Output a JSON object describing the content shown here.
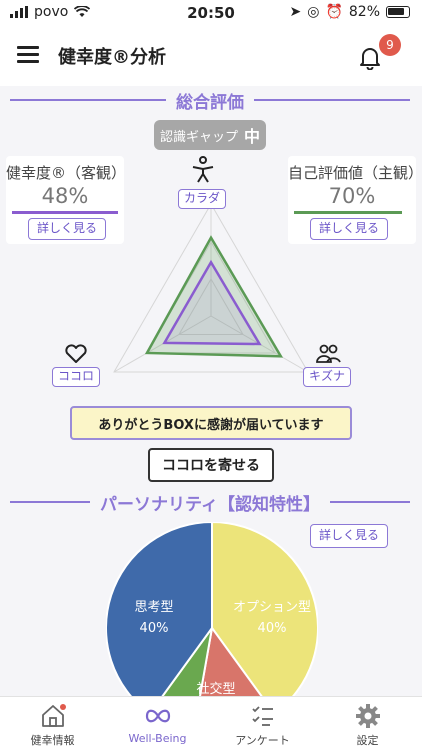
{
  "status_bar": {
    "carrier": "povo",
    "time": "20:50",
    "battery": "82%"
  },
  "app_bar": {
    "title": "健幸度®分析",
    "notification_count": "9"
  },
  "overall": {
    "heading": "総合評価",
    "gap_label": "認識ギャップ",
    "gap_value": "中",
    "objective": {
      "label": "健幸度®（客観）",
      "value": "48%",
      "detail_label": "詳しく見る",
      "color": "#8a5ccf"
    },
    "subjective": {
      "label": "自己評価値（主観）",
      "value": "70%",
      "detail_label": "詳しく見る",
      "color": "#5b9a55"
    },
    "radar": {
      "axes": [
        "カラダ",
        "キズナ",
        "ココロ"
      ],
      "objective_values": [
        0.48,
        0.5,
        0.48
      ],
      "subjective_values": [
        0.7,
        0.72,
        0.66
      ]
    },
    "notice": "ありがとうBOXに感謝が届いています",
    "send_label": "ココロを寄せる"
  },
  "personality": {
    "heading": "パーソナリティ【認知特性】",
    "detail_label": "詳しく見る",
    "slices": [
      {
        "name": "思考型",
        "value": "40%",
        "color": "#3f6aaa"
      },
      {
        "name": "オプション型",
        "value": "40%",
        "color": "#ece47a"
      },
      {
        "name": "社交型",
        "value": "",
        "color": "#d8756a"
      },
      {
        "name": "",
        "value": "",
        "color": "#6aa84f"
      }
    ]
  },
  "tabs": [
    {
      "label": "健幸情報"
    },
    {
      "label": "Well-Being"
    },
    {
      "label": "アンケート"
    },
    {
      "label": "設定"
    }
  ]
}
